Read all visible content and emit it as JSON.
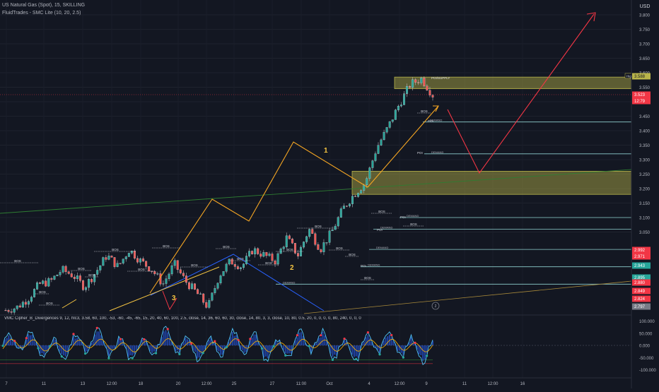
{
  "header": {
    "symbol_line": "US Natural Gas (Spot), 15, SKILLING",
    "indicator_line": "FluidTrades - SMC Lite (10, 20, 2.5)",
    "currency": "USD"
  },
  "oscillator": {
    "label": "VMC Cipher_B_Divergences 9, 12, hlc3, 3.58, 60, 100, -53, -60, -45, -65, 15, 20, 40, 60, 100, 2.5, close, 14, 36, 60, 60, 30, close, 14, 80, 3, 3, close, 10, 80, 0.5, 20, 0, 0, 0, 0, 80, 240, 0, 0, 0",
    "axis_ticks": [
      "100.000",
      "50.000",
      "0.000",
      "-50.000",
      "-100.000"
    ]
  },
  "price_axis": {
    "ticks": [
      "3.800",
      "3.750",
      "3.700",
      "3.650",
      "3.600",
      "3.550",
      "3.500",
      "3.450",
      "3.400",
      "3.350",
      "3.300",
      "3.250",
      "3.200",
      "3.150",
      "3.100",
      "3.050"
    ],
    "markers": [
      {
        "label": "3.588",
        "bg": "#b8b44a",
        "fg": "#131722"
      },
      {
        "label": "3.523",
        "bg": "#f23645",
        "fg": "#ffffff"
      },
      {
        "label": "12:79",
        "bg": "#f23645",
        "fg": "#ffffff"
      },
      {
        "label": "2.992",
        "bg": "#f23645",
        "fg": "#ffffff"
      },
      {
        "label": "2.971",
        "bg": "#f23645",
        "fg": "#ffffff"
      },
      {
        "label": "2.943",
        "bg": "#26a69a",
        "fg": "#ffffff"
      },
      {
        "label": "2.895",
        "bg": "#26a69a",
        "fg": "#ffffff"
      },
      {
        "label": "2.880",
        "bg": "#f23645",
        "fg": "#ffffff"
      },
      {
        "label": "2.849",
        "bg": "#f23645",
        "fg": "#ffffff"
      },
      {
        "label": "2.824",
        "bg": "#f23645",
        "fg": "#ffffff"
      },
      {
        "label": "2.797",
        "bg": "#787b86",
        "fg": "#ffffff"
      }
    ]
  },
  "time_axis": {
    "ticks": [
      "7",
      "11",
      "13",
      "12:00",
      "18",
      "20",
      "12:00",
      "25",
      "27",
      "11:00",
      "Oct",
      "4",
      "12:00",
      "9",
      "11",
      "12:00",
      "16"
    ]
  },
  "annotations": {
    "wave_labels": [
      "1",
      "2",
      "3"
    ],
    "bos_label": "BOS",
    "demand_label": "DEMAND",
    "poi_label": "POI",
    "supply_label": "POI/SUPPLY",
    "high_label": "High",
    "circle_label": "2"
  },
  "chart_data": {
    "type": "line",
    "title": "US Natural Gas (Spot), 15, SKILLING",
    "xlabel": "",
    "ylabel": "USD",
    "ylim": [
      2.78,
      3.81
    ],
    "x_ticks": [
      "7",
      "11",
      "13",
      "12:00",
      "18",
      "20",
      "12:00",
      "25",
      "27",
      "11:00",
      "Oct",
      "4",
      "12:00",
      "9",
      "11",
      "12:00",
      "16"
    ],
    "series": [
      {
        "name": "",
        "values": [
          2.78,
          2.79,
          2.82,
          2.87,
          2.88,
          2.92,
          2.9,
          2.86,
          2.91,
          2.97,
          2.93,
          2.99,
          2.95,
          2.92,
          2.87,
          2.94,
          2.88,
          2.84,
          2.79,
          2.9,
          2.95,
          2.93,
          2.99,
          2.97,
          2.95,
          3.03,
          2.97,
          3.06,
          2.99,
          3.05,
          3.13,
          3.18,
          3.22,
          3.34,
          3.41,
          3.49,
          3.56,
          3.58,
          3.523
        ]
      }
    ],
    "zones": [
      {
        "type": "supply",
        "from": 3.545,
        "to": 3.585
      },
      {
        "type": "demand",
        "from": 3.18,
        "to": 3.26
      }
    ],
    "demand_levels": [
      3.43,
      3.32,
      3.1,
      3.06,
      2.99,
      2.93,
      2.87
    ]
  }
}
